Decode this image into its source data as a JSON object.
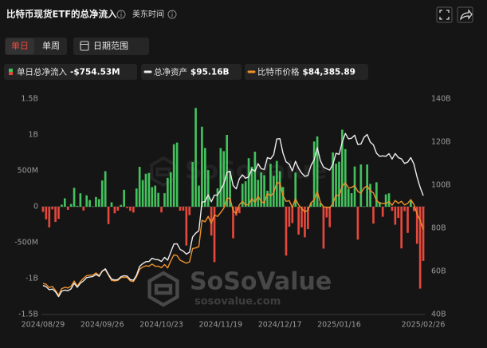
{
  "chart_data": {
    "type": "bar",
    "title": "比特币现货ETF的总净流入",
    "timezone": "美东时间",
    "buttons": [
      "单日",
      "单周",
      "日期范围"
    ],
    "active_button": 0,
    "watermark": "SoSoValue",
    "watermark_url": "sosovalue.com",
    "categories": [
      "2024/08/29",
      null,
      null,
      null,
      null,
      null,
      null,
      null,
      null,
      null,
      null,
      null,
      null,
      null,
      null,
      null,
      null,
      null,
      null,
      "2024/09/26",
      null,
      null,
      null,
      null,
      null,
      null,
      null,
      null,
      null,
      null,
      null,
      null,
      null,
      null,
      null,
      null,
      null,
      null,
      "2024/10/23",
      null,
      null,
      null,
      null,
      null,
      null,
      null,
      null,
      null,
      null,
      null,
      null,
      null,
      null,
      null,
      null,
      null,
      null,
      "2024/11/19",
      null,
      null,
      null,
      null,
      null,
      null,
      null,
      null,
      null,
      null,
      null,
      null,
      null,
      null,
      null,
      null,
      null,
      null,
      "2024/12/17",
      null,
      null,
      null,
      null,
      null,
      null,
      null,
      null,
      null,
      null,
      null,
      null,
      null,
      null,
      null,
      null,
      null,
      null,
      "2025/01/16",
      null,
      null,
      null,
      null,
      null,
      null,
      null,
      null,
      null,
      null,
      null,
      null,
      null,
      null,
      null,
      null,
      null,
      null,
      null,
      null,
      null,
      null,
      null,
      null,
      null,
      null,
      "2025/02/26"
    ],
    "ylim": [
      -1500,
      1500
    ],
    "yticks": [
      {
        "value": 1500,
        "label": "1.5B"
      },
      {
        "value": 1000,
        "label": "1B"
      },
      {
        "value": 500,
        "label": "500M"
      },
      0,
      {
        "value": -500,
        "label": "-500M"
      },
      {
        "value": -1000,
        "label": "-1B"
      },
      {
        "value": -1500,
        "label": "-1.5B"
      }
    ],
    "y2lim": [
      40,
      140
    ],
    "y2ticks": [
      {
        "value": 140,
        "label": "140B"
      },
      {
        "value": 120,
        "label": "120B"
      },
      {
        "value": 100,
        "label": "100B"
      },
      {
        "value": 80,
        "label": "80B"
      },
      {
        "value": 60,
        "label": "60B"
      },
      {
        "value": 40,
        "label": "40B"
      }
    ],
    "y3lim": [
      45000,
      145000
    ],
    "grid": false,
    "series": [
      {
        "name": "单日总净流入",
        "type": "bar",
        "color": "#43c15d",
        "negative_color": "#e5483c",
        "legend_value": "-$754.53M",
        "values": [
          -71.7,
          -175.1,
          -287.8,
          -37.3,
          -211.2,
          -169.9,
          28.7,
          116.9,
          -43.0,
          39.0,
          263.1,
          12.9,
          186.8,
          -52.8,
          158.3,
          92.1,
          4.5,
          136.0,
          105.9,
          365.7,
          494.4,
          -242.6,
          61.3,
          -91.8,
          -54.1,
          25.6,
          235.2,
          -18.7,
          -58.6,
          -81.1,
          253.6,
          555.9,
          371.0,
          458.5,
          470.5,
          273.7,
          294.3,
          192.4,
          -79.1,
          188.1,
          402.1,
          479.4,
          870.0,
          893.3,
          -54.9,
          -54.1,
          -541.1,
          -116.8,
          621.9,
          1376.0,
          294.3,
          1114.0,
          817.5,
          510.1,
          -400.7,
          -771.0,
          255.1,
          816.4,
          773.4,
          1000.0,
          490.3,
          -438.4,
          -122.8,
          -90.0,
          320.0,
          353.6,
          676.0,
          556.8,
          766.7,
          375.6,
          479.0,
          438.5,
          223.1,
          598.0,
          428.9,
          637.5,
          493.2,
          275.2,
          -680.0,
          -277.8,
          -226.5,
          475.2,
          -388.0,
          -287.6,
          -426.1,
          -312.0,
          53.0,
          908.0,
          978.6,
          52.4,
          -583.0,
          -149.4,
          -284.0,
          755.0,
          600.0,
          626.0,
          1072.0,
          802.0,
          248.7,
          188.7,
          559.7,
          -457.6,
          588.3,
          2.9,
          588.1,
          318.0,
          -234.5,
          340.6,
          66.4,
          -140.2,
          171.7,
          186.3,
          -56.8,
          -251.0,
          -156.1,
          -580.2,
          -60.6,
          -364.8,
          94.3,
          -62.3,
          -516.4,
          -1140.0,
          -754.53
        ]
      },
      {
        "name": "总净资产",
        "type": "line",
        "axis": "y2",
        "color": "#ececec",
        "legend_value": "$95.16B",
        "values": [
          53.5,
          52.9,
          51.5,
          51.8,
          50.5,
          48.3,
          50.8,
          51.3,
          51.0,
          51.9,
          54.5,
          52.6,
          54.5,
          55.6,
          57.1,
          57.4,
          57.6,
          58.6,
          57.7,
          60.1,
          61.2,
          58.6,
          56.4,
          56.0,
          56.2,
          57.5,
          58.0,
          57.8,
          56.2,
          55.9,
          58.2,
          62.3,
          63.6,
          64.5,
          64.6,
          66.1,
          65.5,
          65.4,
          64.6,
          66.5,
          65.2,
          69.0,
          72.7,
          72.8,
          70.2,
          69.4,
          68.0,
          68.9,
          76.0,
          77.7,
          78.9,
          92.1,
          92.4,
          95.5,
          92.3,
          95.4,
          95.4,
          97.8,
          100.6,
          105.9,
          106.5,
          99.8,
          98.3,
          103.0,
          104.8,
          103.2,
          103.9,
          107.5,
          106.4,
          110.0,
          107.6,
          107.3,
          112.8,
          112.2,
          114.1,
          121.4,
          121.6,
          114.8,
          110.8,
          109.8,
          106.6,
          111.1,
          107.8,
          105.6,
          104.1,
          104.5,
          109.2,
          111.7,
          117.4,
          111.3,
          108.4,
          107.6,
          107.0,
          109.7,
          114.8,
          114.3,
          120.0,
          124.0,
          121.5,
          121.8,
          123.2,
          118.9,
          119.1,
          122.2,
          123.5,
          120.0,
          118.7,
          114.8,
          113.4,
          113.6,
          113.4,
          114.6,
          112.1,
          114.7,
          112.8,
          112.2,
          110.1,
          110.7,
          112.8,
          109.8,
          103.8,
          99.0,
          95.16
        ]
      },
      {
        "name": "比特币价格",
        "type": "line",
        "axis": "y3",
        "color": "#f0922b",
        "legend_value": "$84,385.89",
        "values": [
          59400,
          59000,
          57500,
          58000,
          56200,
          54000,
          57000,
          57600,
          57300,
          58100,
          60500,
          58200,
          60300,
          61800,
          63000,
          63200,
          63300,
          64300,
          63100,
          65200,
          65800,
          63300,
          60800,
          60600,
          60800,
          62100,
          62300,
          62200,
          60600,
          60300,
          62500,
          66000,
          67000,
          67600,
          67400,
          68400,
          67400,
          67400,
          66700,
          68200,
          66600,
          69900,
          72700,
          72300,
          70200,
          69500,
          68800,
          69400,
          75600,
          75900,
          76500,
          88700,
          88000,
          90500,
          87300,
          91100,
          90500,
          92300,
          94300,
          98900,
          98900,
          93100,
          91900,
          95900,
          97500,
          95800,
          96000,
          98800,
          97000,
          99900,
          97400,
          96700,
          101200,
          100000,
          101500,
          106100,
          106100,
          100000,
          97500,
          97800,
          94700,
          98700,
          95800,
          94200,
          92600,
          93400,
          96900,
          98100,
          102100,
          96900,
          95000,
          94700,
          94500,
          96500,
          100500,
          99900,
          104500,
          106100,
          103700,
          104000,
          104800,
          102100,
          101300,
          103700,
          104700,
          102400,
          101400,
          97900,
          96600,
          96600,
          96500,
          97400,
          95700,
          97900,
          96600,
          97500,
          95800,
          96600,
          98300,
          96100,
          91600,
          88700,
          84385.89
        ]
      }
    ]
  }
}
